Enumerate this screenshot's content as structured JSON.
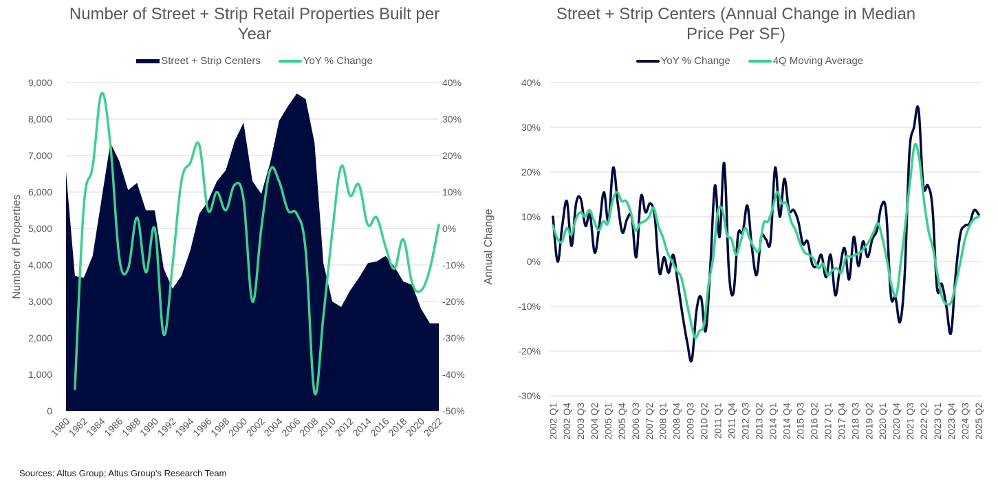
{
  "source_note": "Sources: Altus Group; Altus Group's Research Team",
  "colors": {
    "navy": "#000B3D",
    "green": "#3CCF91",
    "grid": "#D9D9D9",
    "text": "#595959"
  },
  "chart_data": [
    {
      "type": "area",
      "title": "Number of Street + Strip Retail Properties Built per Year",
      "title_line1": "Number of Street + Strip Retail Properties Built per",
      "title_line2": "Year",
      "legend": [
        "Street + Strip Centers",
        "YoY % Change"
      ],
      "legend_placement": "top-center",
      "xlabel": "",
      "ylabel": "Number of Properties",
      "y2label": "Annual Change",
      "ylim": [
        0,
        9000
      ],
      "y2lim": [
        -50,
        40
      ],
      "yticks": [
        "0",
        "1,000",
        "2,000",
        "3,000",
        "4,000",
        "5,000",
        "6,000",
        "7,000",
        "8,000",
        "9,000"
      ],
      "y2ticks": [
        "-50%",
        "-40%",
        "-30%",
        "-20%",
        "-10%",
        "0%",
        "10%",
        "20%",
        "30%",
        "40%"
      ],
      "grid": true,
      "x": [
        1980,
        1981,
        1982,
        1983,
        1984,
        1985,
        1986,
        1987,
        1988,
        1989,
        1990,
        1991,
        1992,
        1993,
        1994,
        1995,
        1996,
        1997,
        1998,
        1999,
        2000,
        2001,
        2002,
        2003,
        2004,
        2005,
        2006,
        2007,
        2008,
        2009,
        2010,
        2011,
        2012,
        2013,
        2014,
        2015,
        2016,
        2017,
        2018,
        2019,
        2020,
        2021,
        2022
      ],
      "xticklabels": [
        "1980",
        "1982",
        "1984",
        "1986",
        "1988",
        "1990",
        "1992",
        "1994",
        "1996",
        "1998",
        "2000",
        "2002",
        "2004",
        "2006",
        "2008",
        "2010",
        "2012",
        "2014",
        "2016",
        "2018",
        "2020",
        "2022"
      ],
      "series": [
        {
          "name": "Street + Strip Centers",
          "type": "area",
          "axis": "left",
          "values": [
            6550,
            3700,
            3650,
            4250,
            5800,
            7350,
            6850,
            6050,
            6250,
            5500,
            5500,
            3900,
            3350,
            3700,
            4400,
            5400,
            5750,
            6300,
            6600,
            7400,
            7900,
            6300,
            5950,
            6800,
            7950,
            8350,
            8700,
            8550,
            7350,
            4050,
            3000,
            2850,
            3300,
            3650,
            4050,
            4100,
            4250,
            3950,
            3550,
            3450,
            2800,
            2400,
            2400
          ]
        },
        {
          "name": "YoY % Change",
          "type": "line",
          "axis": "right",
          "values": [
            null,
            -44,
            6,
            17,
            37,
            23,
            -8,
            -11,
            3,
            -12,
            0,
            -29,
            -10,
            13,
            18,
            23,
            5,
            10,
            5,
            12,
            8,
            -20,
            0,
            16,
            13,
            5,
            4,
            -6,
            -45,
            -24,
            -1,
            17,
            9,
            12,
            1,
            3,
            -5,
            -11,
            -3,
            -15,
            -17,
            -11,
            1
          ]
        }
      ]
    },
    {
      "type": "line",
      "title": "Street + Strip Centers (Annual Change in Median Price Per SF)",
      "title_line1": "Street + Strip Centers (Annual Change in Median",
      "title_line2": "Price Per SF)",
      "legend": [
        "YoY % Change",
        "4Q Moving Average"
      ],
      "legend_placement": "top-center",
      "xlabel": "",
      "ylabel": "",
      "ylim": [
        -30,
        40
      ],
      "yticks": [
        "-30%",
        "-20%",
        "-10%",
        "0%",
        "10%",
        "20%",
        "30%",
        "40%"
      ],
      "grid": true,
      "x_start": "2002 Q1",
      "x_end": "2025 Q2",
      "xticklabels": [
        "2002 Q1",
        "2002 Q4",
        "2003 Q3",
        "2004 Q2",
        "2005 Q1",
        "2005 Q4",
        "2006 Q3",
        "2007 Q2",
        "2008 Q1",
        "2008 Q4",
        "2009 Q3",
        "2010 Q2",
        "2011 Q1",
        "2011 Q4",
        "2012 Q3",
        "2013 Q2",
        "2014 Q1",
        "2014 Q4",
        "2015 Q3",
        "2016 Q2",
        "2017 Q1",
        "2017 Q4",
        "2018 Q3",
        "2019 Q2",
        "2020 Q1",
        "2020 Q4",
        "2021 Q3",
        "2022 Q2",
        "2023 Q1",
        "2023 Q4",
        "2024 Q3",
        "2025 Q2"
      ],
      "series": [
        {
          "name": "YoY % Change",
          "values": [
            10,
            0,
            8,
            13.5,
            3.5,
            13,
            14,
            8,
            10.5,
            2,
            8,
            15.5,
            9,
            21,
            13,
            6.5,
            9.5,
            10,
            1,
            14.5,
            11,
            13,
            10,
            -2.5,
            1,
            -2.5,
            1.5,
            -5,
            -12,
            -18,
            -22,
            -11,
            -8,
            -15.5,
            -1,
            17,
            5.5,
            22,
            -2,
            -7,
            6,
            6.5,
            12.5,
            3,
            -3,
            5.5,
            5,
            4.5,
            21,
            10,
            18.5,
            11.5,
            11.5,
            9,
            4,
            4.5,
            -0.5,
            -1,
            1.5,
            -3.5,
            1.5,
            -7.5,
            -1.5,
            3,
            -4,
            5.5,
            -1,
            4.5,
            1,
            5,
            7,
            12.5,
            11,
            -7.5,
            -8,
            -13.5,
            -3,
            24,
            30,
            34,
            17,
            17,
            12,
            -6,
            -5,
            -10,
            -16,
            -3,
            6,
            8,
            8.5,
            11.5,
            10.5
          ]
        },
        {
          "name": "4Q Moving Average",
          "values": [
            8,
            5,
            4.5,
            7.5,
            6,
            9.5,
            11,
            10,
            11.5,
            9,
            7,
            9,
            8.5,
            13.5,
            15.5,
            13.5,
            13.5,
            11,
            7,
            8.5,
            9,
            10,
            12,
            8,
            5.5,
            2,
            0,
            -2,
            -3.5,
            -8,
            -13,
            -17,
            -15.5,
            -14,
            -5,
            1,
            11,
            11.5,
            6,
            5,
            1.5,
            4.5,
            7.5,
            5,
            3,
            2.5,
            8.5,
            9,
            12,
            15.5,
            13,
            13,
            9,
            7,
            4,
            2,
            1.5,
            0.5,
            -1.5,
            -0.5,
            -3,
            -2,
            -1.5,
            -2.5,
            1,
            1,
            1.5,
            2,
            3,
            4.5,
            6.5,
            8.5,
            5,
            0,
            -5.5,
            -7.5,
            0,
            8.5,
            18,
            26,
            23,
            14,
            7,
            3,
            -3,
            -8,
            -9.5,
            -9,
            -5,
            0,
            5,
            8,
            9.5,
            10
          ]
        }
      ]
    }
  ]
}
